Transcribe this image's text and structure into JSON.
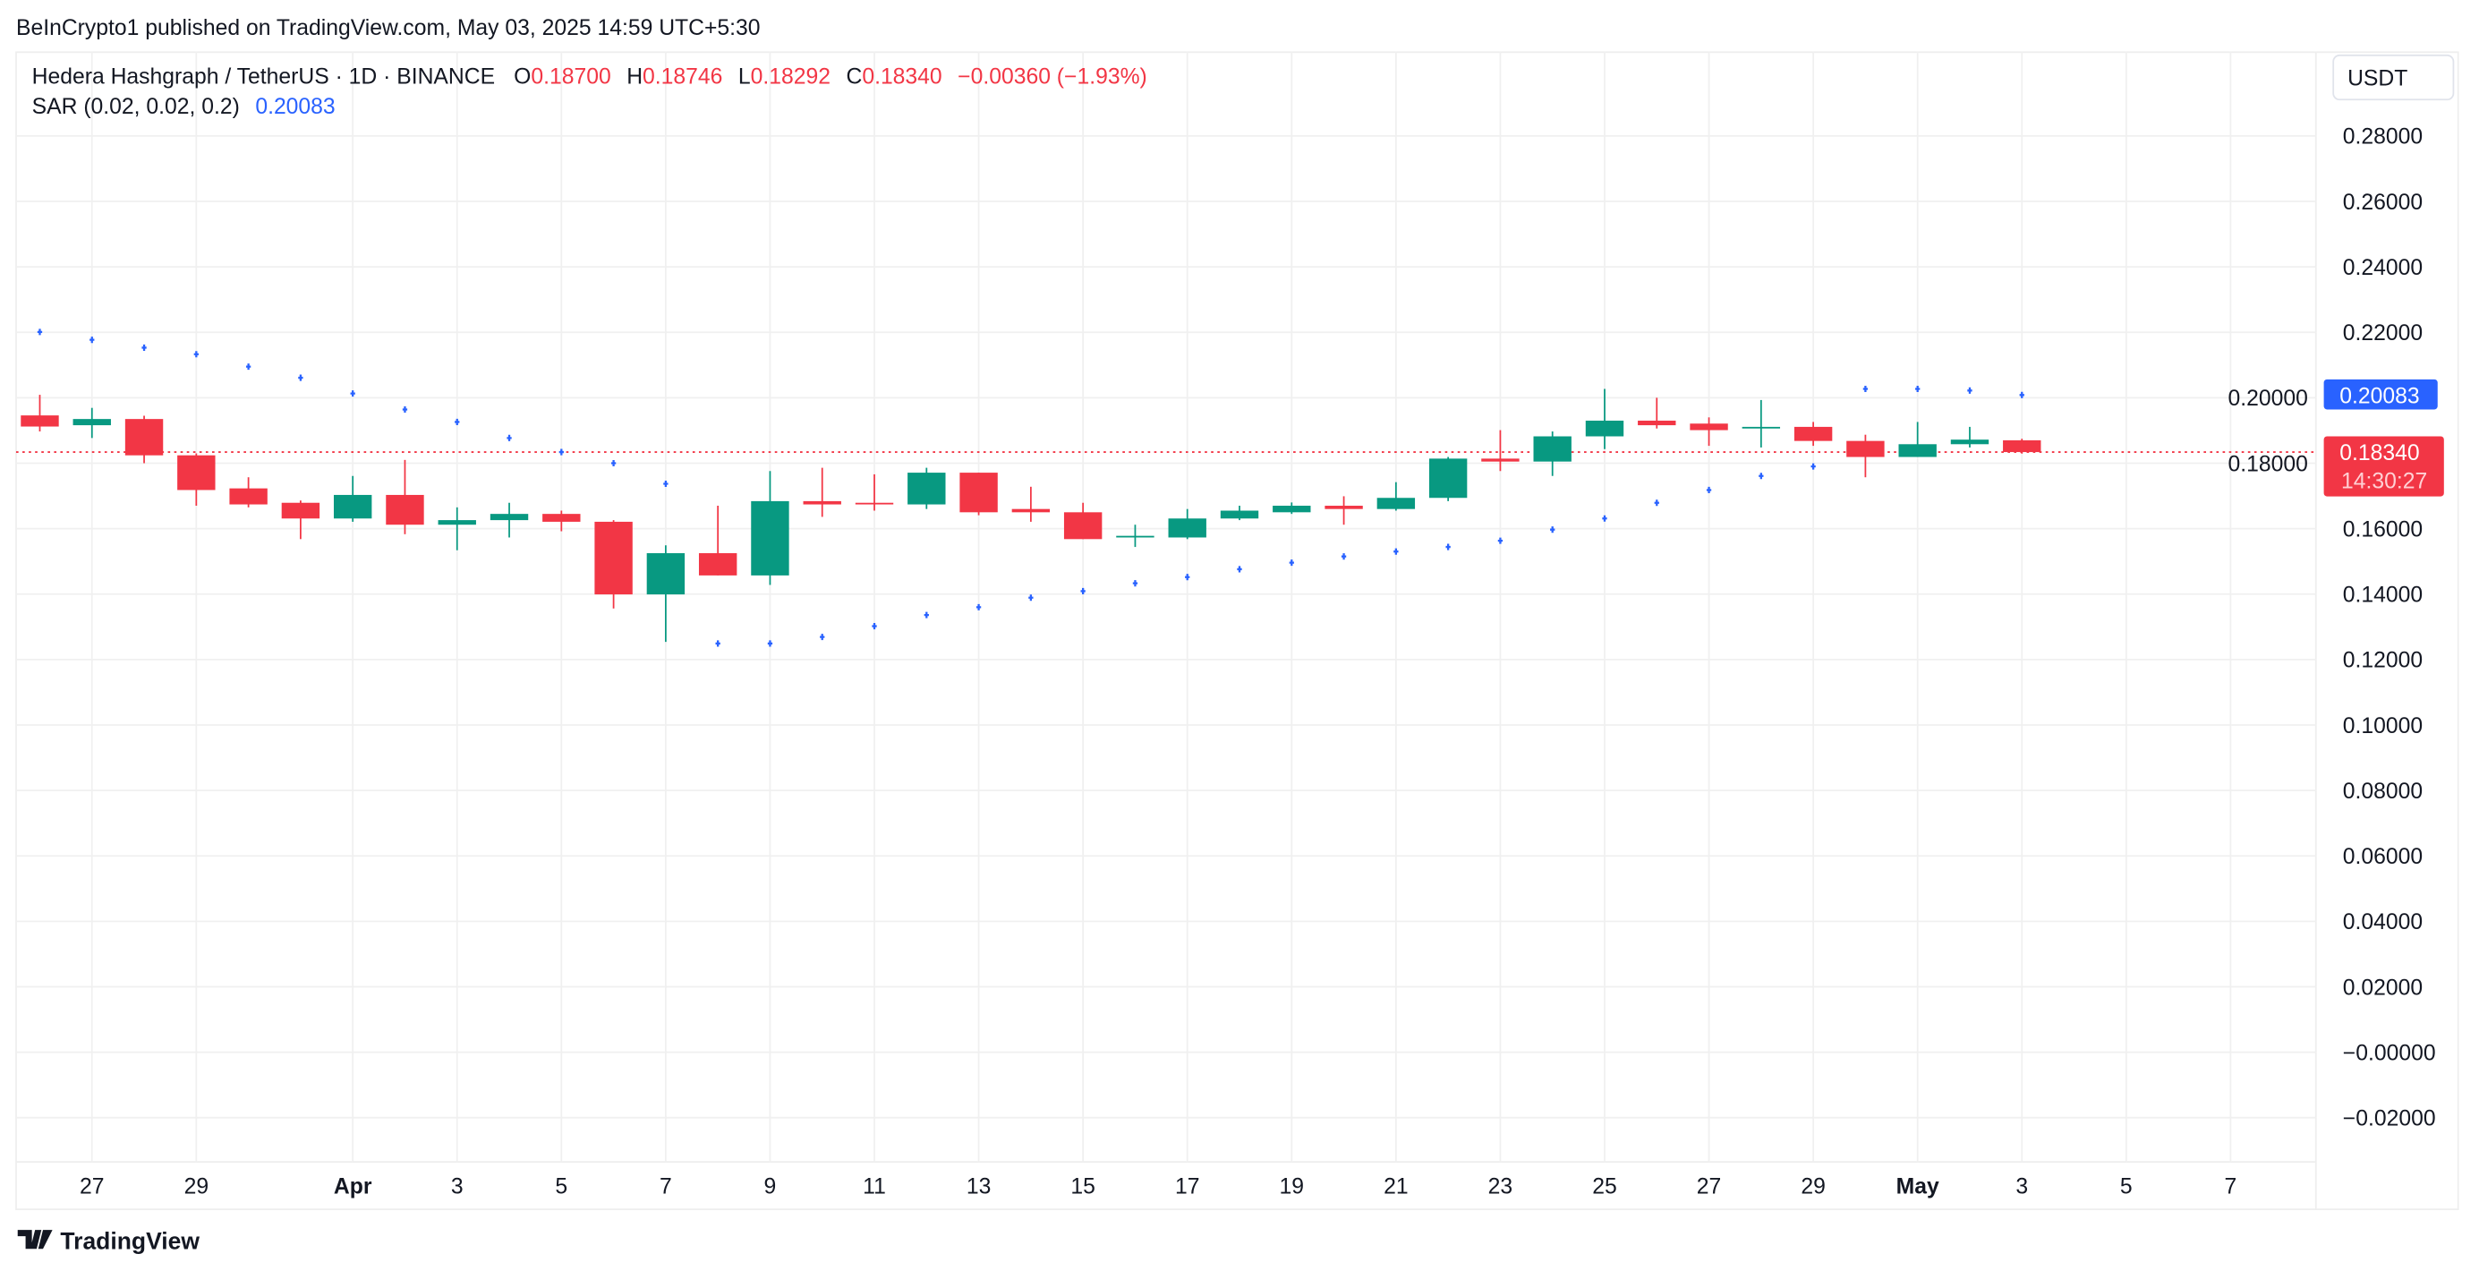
{
  "header": {
    "published": "BeInCrypto1 published on TradingView.com, May 03, 2025 14:59 UTC+5:30"
  },
  "legend": {
    "symbol": "Hedera Hashgraph / TetherUS · 1D · BINANCE",
    "o_label": "O",
    "o_value": "0.18700",
    "h_label": "H",
    "h_value": "0.18746",
    "l_label": "L",
    "l_value": "0.18292",
    "c_label": "C",
    "c_value": "0.18340",
    "change": "−0.00360 (−1.93%)",
    "indicator": "SAR (0.02, 0.02, 0.2)",
    "indicator_value": "0.20083"
  },
  "price_axis": {
    "currency": "USDT",
    "sar_label": "0.20083",
    "last_price_label": "0.18340",
    "countdown": "14:30:27"
  },
  "footer": {
    "brand": "TradingView"
  },
  "colors": {
    "up": "#089981",
    "down": "#f23645",
    "sar": "#2962ff",
    "grid": "#f0f0f0",
    "text": "#131722"
  },
  "chart_data": {
    "type": "candlestick",
    "title": "Hedera Hashgraph / TetherUS · 1D · BINANCE",
    "xlabel": "",
    "ylabel": "USDT",
    "ylim": [
      -0.03,
      0.29
    ],
    "grid": true,
    "y_ticks": [
      0.28,
      0.26,
      0.24,
      0.22,
      0.2,
      0.18,
      0.16,
      0.14,
      0.12,
      0.1,
      0.08,
      0.06,
      0.04,
      0.02,
      0.0,
      -0.02
    ],
    "y_tick_labels": [
      "0.28000",
      "0.26000",
      "0.24000",
      "0.22000",
      "0.20000",
      "0.18000",
      "0.16000",
      "0.14000",
      "0.12000",
      "0.10000",
      "0.08000",
      "0.06000",
      "0.04000",
      "0.02000",
      "−0.00000",
      "−0.02000"
    ],
    "x_ticks": [
      {
        "day": 1,
        "label": "27"
      },
      {
        "day": 3,
        "label": "29"
      },
      {
        "day": 6,
        "label": "Apr",
        "bold": true
      },
      {
        "day": 8,
        "label": "3"
      },
      {
        "day": 10,
        "label": "5"
      },
      {
        "day": 12,
        "label": "7"
      },
      {
        "day": 14,
        "label": "9"
      },
      {
        "day": 16,
        "label": "11"
      },
      {
        "day": 18,
        "label": "13"
      },
      {
        "day": 20,
        "label": "15"
      },
      {
        "day": 22,
        "label": "17"
      },
      {
        "day": 24,
        "label": "19"
      },
      {
        "day": 26,
        "label": "21"
      },
      {
        "day": 28,
        "label": "23"
      },
      {
        "day": 30,
        "label": "25"
      },
      {
        "day": 32,
        "label": "27"
      },
      {
        "day": 34,
        "label": "29"
      },
      {
        "day": 36,
        "label": "May",
        "bold": true
      },
      {
        "day": 38,
        "label": "3"
      },
      {
        "day": 40,
        "label": "5"
      },
      {
        "day": 42,
        "label": "7"
      }
    ],
    "dates": [
      "Mar 26",
      "Mar 27",
      "Mar 28",
      "Mar 29",
      "Mar 30",
      "Mar 31",
      "Apr 1",
      "Apr 2",
      "Apr 3",
      "Apr 4",
      "Apr 5",
      "Apr 6",
      "Apr 7",
      "Apr 8",
      "Apr 9",
      "Apr 10",
      "Apr 11",
      "Apr 12",
      "Apr 13",
      "Apr 14",
      "Apr 15",
      "Apr 16",
      "Apr 17",
      "Apr 18",
      "Apr 19",
      "Apr 20",
      "Apr 21",
      "Apr 22",
      "Apr 23",
      "Apr 24",
      "Apr 25",
      "Apr 26",
      "Apr 27",
      "Apr 28",
      "Apr 29",
      "Apr 30",
      "May 1",
      "May 2",
      "May 3"
    ],
    "ohlc": [
      [
        0.1946,
        0.2009,
        0.1897,
        0.1912
      ],
      [
        0.1916,
        0.1969,
        0.1877,
        0.1935
      ],
      [
        0.1935,
        0.1945,
        0.18,
        0.1824
      ],
      [
        0.1824,
        0.183,
        0.167,
        0.1718
      ],
      [
        0.1723,
        0.1757,
        0.1665,
        0.1674
      ],
      [
        0.1679,
        0.1686,
        0.1568,
        0.1631
      ],
      [
        0.1631,
        0.1761,
        0.1621,
        0.1703
      ],
      [
        0.1703,
        0.181,
        0.1583,
        0.1612
      ],
      [
        0.1612,
        0.1665,
        0.1534,
        0.1626
      ],
      [
        0.1626,
        0.1679,
        0.1573,
        0.1645
      ],
      [
        0.1645,
        0.1655,
        0.1592,
        0.1621
      ],
      [
        0.1621,
        0.1626,
        0.1356,
        0.1399
      ],
      [
        0.1399,
        0.1549,
        0.1254,
        0.1525
      ],
      [
        0.1525,
        0.167,
        0.1457,
        0.1457
      ],
      [
        0.1457,
        0.1776,
        0.1428,
        0.1684
      ],
      [
        0.1684,
        0.1786,
        0.1636,
        0.1674
      ],
      [
        0.1679,
        0.1766,
        0.1655,
        0.1674
      ],
      [
        0.1674,
        0.1786,
        0.166,
        0.1771
      ],
      [
        0.1771,
        0.1771,
        0.1641,
        0.165
      ],
      [
        0.166,
        0.1728,
        0.1621,
        0.165
      ],
      [
        0.165,
        0.1679,
        0.1568,
        0.1568
      ],
      [
        0.1573,
        0.1612,
        0.1544,
        0.1578
      ],
      [
        0.1573,
        0.166,
        0.1568,
        0.1631
      ],
      [
        0.1631,
        0.167,
        0.1626,
        0.1655
      ],
      [
        0.165,
        0.168,
        0.1645,
        0.167
      ],
      [
        0.167,
        0.1699,
        0.1612,
        0.166
      ],
      [
        0.166,
        0.1742,
        0.1655,
        0.1694
      ],
      [
        0.1694,
        0.1819,
        0.1684,
        0.1814
      ],
      [
        0.1814,
        0.1901,
        0.1776,
        0.1805
      ],
      [
        0.1805,
        0.1897,
        0.1761,
        0.1882
      ],
      [
        0.1882,
        0.2027,
        0.1843,
        0.193
      ],
      [
        0.193,
        0.2,
        0.1906,
        0.1916
      ],
      [
        0.1921,
        0.194,
        0.1853,
        0.1901
      ],
      [
        0.1906,
        0.1993,
        0.1848,
        0.1911
      ],
      [
        0.1911,
        0.1926,
        0.1853,
        0.1868
      ],
      [
        0.1868,
        0.1887,
        0.1757,
        0.1819
      ],
      [
        0.1819,
        0.1926,
        0.1819,
        0.1858
      ],
      [
        0.1858,
        0.1911,
        0.1848,
        0.1872
      ],
      [
        0.187,
        0.18746,
        0.18292,
        0.1834
      ]
    ],
    "sar": [
      0.2201,
      0.2177,
      0.2153,
      0.2133,
      0.2095,
      0.2061,
      0.2013,
      0.1964,
      0.1926,
      0.1877,
      0.1834,
      0.18,
      0.1737,
      0.1249,
      0.1249,
      0.1269,
      0.1302,
      0.1336,
      0.136,
      0.1389,
      0.1409,
      0.1433,
      0.1452,
      0.1476,
      0.1496,
      0.1515,
      0.153,
      0.1544,
      0.1563,
      0.1597,
      0.1631,
      0.1679,
      0.1718,
      0.1761,
      0.179,
      0.2027,
      0.2027,
      0.2022,
      0.20083
    ],
    "last_price": 0.1834
  }
}
